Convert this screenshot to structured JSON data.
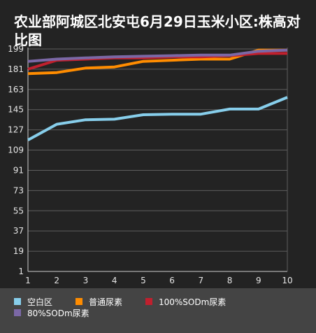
{
  "title": "农业部阿城区北安屯6月29日玉米小区:株高对比图",
  "colors": {
    "background": "#232323",
    "legend_bg": "#444444",
    "grid": "#5e5e5e",
    "axis": "#cccccc"
  },
  "chart_data": {
    "type": "line",
    "title": "农业部阿城区北安屯6月29日玉米小区:株高对比图",
    "x": [
      1,
      2,
      3,
      4,
      5,
      6,
      7,
      8,
      9,
      10
    ],
    "xlim": [
      1,
      10
    ],
    "ylim": [
      1,
      199
    ],
    "yticks": [
      1,
      19,
      37,
      55,
      73,
      91,
      109,
      127,
      145,
      163,
      181,
      199
    ],
    "grid": true,
    "legend": "bottom",
    "series": [
      {
        "name": "空白区",
        "color": "#87ceeb",
        "values": [
          118,
          132,
          136,
          136.5,
          140.5,
          141,
          141,
          145.5,
          145.5,
          156
        ]
      },
      {
        "name": "普通尿素",
        "color": "#ff8c00",
        "values": [
          177,
          178,
          182,
          183,
          188,
          189,
          190,
          190,
          198,
          198
        ]
      },
      {
        "name": "100%SODm尿素",
        "color": "#c0202e",
        "values": [
          181,
          189,
          190,
          191,
          191,
          192,
          192,
          193,
          195,
          195
        ]
      },
      {
        "name": "80%SODm尿素",
        "color": "#7b68a6",
        "values": [
          188,
          190,
          191,
          192,
          192.5,
          193,
          193.5,
          193.5,
          197,
          198
        ]
      }
    ]
  }
}
